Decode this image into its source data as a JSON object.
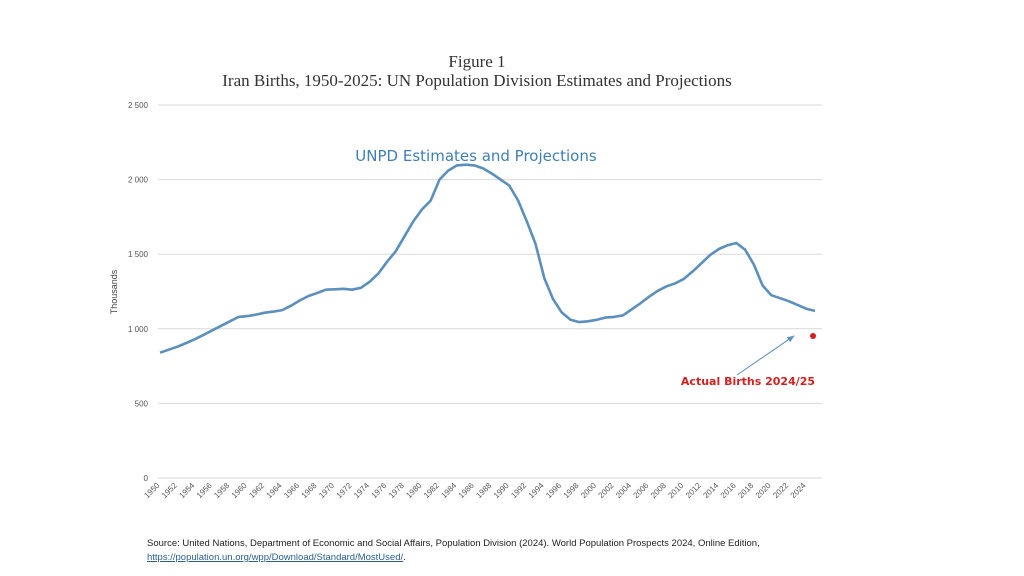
{
  "chart_data": {
    "type": "line",
    "title": "Figure 1",
    "subtitle": "Iran Births, 1950-2025: UN Population Division Estimates and Projections",
    "xlabel": "",
    "ylabel": "Thousands",
    "ylim": [
      0,
      2500
    ],
    "yticks": [
      "0",
      "500",
      "1 000",
      "1 500",
      "2 000",
      "2 500"
    ],
    "ytick_values": [
      0,
      500,
      1000,
      1500,
      2000,
      2500
    ],
    "xticks": [
      "1950",
      "1952",
      "1954",
      "1956",
      "1958",
      "1960",
      "1962",
      "1964",
      "1966",
      "1968",
      "1970",
      "1972",
      "1974",
      "1976",
      "1978",
      "1980",
      "1982",
      "1984",
      "1986",
      "1988",
      "1990",
      "1992",
      "1994",
      "1996",
      "1998",
      "2000",
      "2002",
      "2004",
      "2006",
      "2008",
      "2010",
      "2012",
      "2014",
      "2016",
      "2018",
      "2020",
      "2022",
      "2024"
    ],
    "grid": true,
    "series": [
      {
        "name": "UNPD Estimates and Projections",
        "color": "#5b8fbd",
        "x": [
          1950,
          1951,
          1952,
          1953,
          1954,
          1955,
          1956,
          1957,
          1958,
          1959,
          1960,
          1961,
          1962,
          1963,
          1964,
          1965,
          1966,
          1967,
          1968,
          1969,
          1970,
          1971,
          1972,
          1973,
          1974,
          1975,
          1976,
          1977,
          1978,
          1979,
          1980,
          1981,
          1982,
          1983,
          1984,
          1985,
          1986,
          1987,
          1988,
          1989,
          1990,
          1991,
          1992,
          1993,
          1994,
          1995,
          1996,
          1997,
          1998,
          1999,
          2000,
          2001,
          2002,
          2003,
          2004,
          2005,
          2006,
          2007,
          2008,
          2009,
          2010,
          2011,
          2012,
          2013,
          2014,
          2015,
          2016,
          2017,
          2018,
          2019,
          2020,
          2021,
          2022,
          2023,
          2024,
          2025
        ],
        "values": [
          840,
          860,
          880,
          905,
          930,
          960,
          990,
          1020,
          1050,
          1080,
          1085,
          1095,
          1108,
          1115,
          1125,
          1155,
          1190,
          1220,
          1240,
          1262,
          1265,
          1268,
          1262,
          1275,
          1315,
          1370,
          1450,
          1520,
          1620,
          1720,
          1800,
          1860,
          2000,
          2060,
          2095,
          2100,
          2095,
          2075,
          2040,
          2000,
          1960,
          1860,
          1720,
          1570,
          1340,
          1200,
          1110,
          1060,
          1045,
          1050,
          1060,
          1075,
          1080,
          1090,
          1130,
          1170,
          1215,
          1255,
          1285,
          1305,
          1335,
          1385,
          1440,
          1495,
          1535,
          1560,
          1575,
          1530,
          1430,
          1290,
          1225,
          1205,
          1185,
          1160,
          1135,
          1120
        ]
      },
      {
        "name": "Actual Births 2024/25",
        "color": "#d42020",
        "x": [
          2025
        ],
        "values": [
          952
        ]
      }
    ],
    "annotations": [
      {
        "text": "UNPD Estimates and Projections",
        "color": "#3f7fb5"
      },
      {
        "text": "Actual Births 2024/25",
        "color": "#d42020",
        "arrow_to": [
          2024,
          880
        ]
      }
    ]
  },
  "source": {
    "text": "Source: United Nations, Department of Economic and Social Affairs, Population Division (2024). World Population Prospects 2024, Online Edition,",
    "link": "https://population.un.org/wpp/Download/Standard/MostUsed/",
    "link_suffix": "."
  }
}
